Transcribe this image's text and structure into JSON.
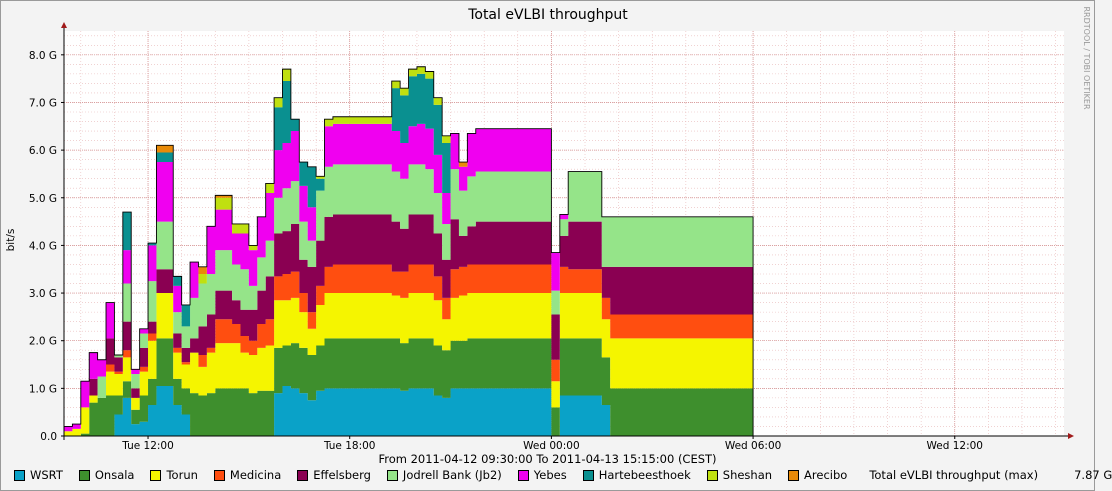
{
  "chart_data": {
    "type": "area",
    "stacked": true,
    "title": "Total eVLBI throughput",
    "ylabel": "bit/s",
    "watermark": "RRDTOOL / TOBI OETIKER",
    "time_range_label": "From 2011-04-12 09:30:00 To 2011-04-13 15:15:00 (CEST)",
    "x_start": "2011-04-12 09:30",
    "x_end": "2011-04-13 15:15",
    "x_step_minutes": 15,
    "x_tick_labels": [
      "Tue 12:00",
      "Tue 18:00",
      "Wed 00:00",
      "Wed 06:00",
      "Wed 12:00"
    ],
    "y_tick_labels": [
      "0.0",
      "1.0 G",
      "2.0 G",
      "3.0 G",
      "4.0 G",
      "5.0 G",
      "6.0 G",
      "7.0 G",
      "8.0 G"
    ],
    "ylim": [
      0,
      8.5
    ],
    "y_unit": "Gbit/s",
    "grid": true,
    "total_label": "Total eVLBI throughput (max)",
    "total_max": "7.87 G",
    "series": [
      {
        "name": "WSRT",
        "color": "#0aa2c8",
        "values": [
          0,
          0,
          0,
          0,
          0,
          0,
          0.45,
          0.8,
          0.25,
          0.3,
          0.65,
          1.05,
          1.05,
          0.65,
          0.45,
          0,
          0,
          0,
          0,
          0,
          0,
          0,
          0,
          0,
          0,
          0.9,
          1.05,
          1.0,
          0.9,
          0.75,
          0.95,
          1.0,
          1.0,
          1.0,
          1.0,
          1.0,
          1.0,
          1.0,
          1.0,
          1.0,
          0.95,
          1.0,
          1.0,
          1.0,
          0.85,
          0.8,
          1.0,
          1.0,
          1.0,
          1.0,
          1.0,
          1.0,
          1.0,
          1.0,
          1.0,
          1.0,
          1.0,
          1.0,
          0,
          0.85,
          0.85,
          0.85,
          0.85,
          0.85,
          0.65,
          0,
          0,
          0,
          0,
          0,
          0,
          0,
          0,
          0,
          0,
          0,
          0,
          0,
          0,
          0,
          0,
          0,
          0
        ]
      },
      {
        "name": "Onsala",
        "color": "#3e8f2d",
        "values": [
          0,
          0,
          0.05,
          0.7,
          0.8,
          0.85,
          0.4,
          0.35,
          0.3,
          0.55,
          0.55,
          1.0,
          1.0,
          0.55,
          0.55,
          0.9,
          0.85,
          0.9,
          1.0,
          1.0,
          1.0,
          1.0,
          0.9,
          0.95,
          0.95,
          0.95,
          0.85,
          0.95,
          0.95,
          0.95,
          0.95,
          1.05,
          1.05,
          1.05,
          1.05,
          1.05,
          1.05,
          1.05,
          1.05,
          1.05,
          1.0,
          1.05,
          1.05,
          1.05,
          1.05,
          1.0,
          1.0,
          1.0,
          1.05,
          1.05,
          1.05,
          1.05,
          1.05,
          1.05,
          1.05,
          1.05,
          1.05,
          1.05,
          0.6,
          1.2,
          1.2,
          1.2,
          1.2,
          1.2,
          1.0,
          1.0,
          1.0,
          1.0,
          1.0,
          1.0,
          1.0,
          1.0,
          1.0,
          1.0,
          1.0,
          1.0,
          1.0,
          1.0,
          1.0,
          1.0,
          1.0,
          1.0,
          0
        ]
      },
      {
        "name": "Torun",
        "color": "#f5f500",
        "values": [
          0.1,
          0.15,
          0.55,
          0.15,
          0,
          0.5,
          0.45,
          0.5,
          0.25,
          0.5,
          0.8,
          0.95,
          0.95,
          0.55,
          0.5,
          0.85,
          0.6,
          0.85,
          0.95,
          0.95,
          0.95,
          0.75,
          0.8,
          0.9,
          0.95,
          1.0,
          0.95,
          0.95,
          0.75,
          0.55,
          0.85,
          0.95,
          0.95,
          0.95,
          0.95,
          0.95,
          0.95,
          0.95,
          0.95,
          0.9,
          0.95,
          0.95,
          0.95,
          0.95,
          0.95,
          0.65,
          0.9,
          0.95,
          0.95,
          0.95,
          0.95,
          0.95,
          0.95,
          0.95,
          0.95,
          0.95,
          0.95,
          0.95,
          0.55,
          0.95,
          0.95,
          0.95,
          0.95,
          0.95,
          0.8,
          1.05,
          1.05,
          1.05,
          1.05,
          1.05,
          1.05,
          1.05,
          1.05,
          1.05,
          1.05,
          1.05,
          1.05,
          1.05,
          1.05,
          1.05,
          1.05,
          1.05,
          0
        ]
      },
      {
        "name": "Medicina",
        "color": "#ff4e10",
        "values": [
          0,
          0,
          0,
          0,
          0,
          0.15,
          0.05,
          0.15,
          0,
          0.1,
          0.15,
          0,
          0,
          0.1,
          0.05,
          0,
          0.25,
          0.1,
          0.5,
          0.5,
          0.4,
          0.35,
          0.3,
          0.5,
          0.55,
          0.5,
          0.55,
          0.55,
          0.4,
          0.35,
          0.4,
          0.55,
          0.6,
          0.6,
          0.6,
          0.6,
          0.6,
          0.6,
          0.6,
          0.5,
          0.55,
          0.6,
          0.6,
          0.6,
          0.5,
          0.45,
          0.6,
          0.6,
          0.6,
          0.6,
          0.6,
          0.6,
          0.6,
          0.6,
          0.6,
          0.6,
          0.6,
          0.6,
          0.45,
          0.55,
          0.5,
          0.5,
          0.5,
          0.5,
          0.45,
          0.5,
          0.5,
          0.5,
          0.5,
          0.5,
          0.5,
          0.5,
          0.5,
          0.5,
          0.5,
          0.5,
          0.5,
          0.5,
          0.5,
          0.5,
          0.5,
          0.5,
          0
        ]
      },
      {
        "name": "Effelsberg",
        "color": "#8a0052",
        "values": [
          0,
          0,
          0,
          0.35,
          0,
          0.55,
          0.3,
          0.6,
          0.2,
          0.4,
          0.25,
          0.5,
          0.5,
          0.3,
          0.3,
          0.3,
          0.6,
          0.7,
          0.6,
          0.6,
          0.5,
          0.55,
          0.65,
          0.7,
          0.9,
          0.9,
          0.9,
          1.0,
          0.7,
          0.95,
          0.95,
          1.05,
          1.05,
          1.05,
          1.05,
          1.05,
          1.05,
          1.05,
          1.05,
          1.05,
          0.9,
          1.05,
          1.05,
          1.05,
          0.9,
          0.8,
          1.05,
          0.65,
          0.8,
          0.9,
          0.9,
          0.9,
          0.9,
          0.9,
          0.9,
          0.9,
          0.9,
          0.9,
          0.95,
          0.65,
          1.0,
          1.0,
          1.0,
          1.0,
          0.65,
          1.0,
          1.0,
          1.0,
          1.0,
          1.0,
          1.0,
          1.0,
          1.0,
          1.0,
          1.0,
          1.0,
          1.0,
          1.0,
          1.0,
          1.0,
          1.0,
          1.0,
          0
        ]
      },
      {
        "name": "Jodrell Bank (Jb2)",
        "color": "#95e489",
        "values": [
          0,
          0,
          0,
          0,
          0.45,
          0,
          0.05,
          0.8,
          0.3,
          0.3,
          0.85,
          1.0,
          1.0,
          0.45,
          0.45,
          0.85,
          0.9,
          0.85,
          0.85,
          0.85,
          0.75,
          0.85,
          0.5,
          0.7,
          0.75,
          0.75,
          0.9,
          0.9,
          0.8,
          0.55,
          1.05,
          1.05,
          1.05,
          1.05,
          1.05,
          1.05,
          1.05,
          1.05,
          1.05,
          1.05,
          1.05,
          1.05,
          1.05,
          0.95,
          0.85,
          0.75,
          1.05,
          0.95,
          1.05,
          1.05,
          1.05,
          1.05,
          1.05,
          1.05,
          1.05,
          1.05,
          1.05,
          1.05,
          0.5,
          0.35,
          1.05,
          1.05,
          1.05,
          1.05,
          1.05,
          1.05,
          1.05,
          1.05,
          1.05,
          1.05,
          1.05,
          1.05,
          1.05,
          1.05,
          1.05,
          1.05,
          1.05,
          1.05,
          1.05,
          1.05,
          1.05,
          1.05,
          0
        ]
      },
      {
        "name": "Yebes",
        "color": "#f000f0",
        "values": [
          0.1,
          0.1,
          0.55,
          0.55,
          0.35,
          0.75,
          0,
          0.7,
          0.1,
          0.1,
          0.75,
          1.25,
          1.25,
          0.55,
          0,
          0.75,
          0,
          1.0,
          0.85,
          0.85,
          0.65,
          0.75,
          0.75,
          0.85,
          1.0,
          1.0,
          0.95,
          1.05,
          0.75,
          0.7,
          0,
          0.85,
          0.85,
          0.85,
          0.85,
          0.85,
          0.85,
          0.85,
          0.85,
          0.85,
          0.75,
          0.8,
          0.85,
          0.85,
          0.8,
          0.65,
          0.75,
          0.5,
          0.9,
          0.9,
          0.9,
          0.9,
          0.9,
          0.9,
          0.9,
          0.9,
          0.9,
          0.9,
          0.8,
          0.1,
          0,
          0,
          0,
          0,
          0,
          0,
          0,
          0,
          0,
          0,
          0,
          0,
          0,
          0,
          0,
          0,
          0,
          0,
          0,
          0,
          0,
          0,
          0
        ]
      },
      {
        "name": "Hartebeesthoek",
        "color": "#0a9090",
        "values": [
          0,
          0,
          0,
          0,
          0,
          0,
          0,
          0.8,
          0,
          0,
          0.05,
          0.2,
          0.2,
          0.2,
          0.45,
          0,
          0,
          0,
          0,
          0,
          0,
          0,
          0,
          0,
          0,
          0.9,
          1.3,
          0.25,
          0.5,
          0.85,
          0.25,
          0,
          0,
          0,
          0,
          0,
          0,
          0,
          0,
          0.9,
          1.0,
          1.05,
          1.05,
          1.05,
          1.05,
          1.05,
          0,
          0,
          0,
          0,
          0,
          0,
          0,
          0,
          0,
          0,
          0,
          0,
          0,
          0,
          0,
          0,
          0,
          0,
          0,
          0,
          0,
          0,
          0,
          0,
          0,
          0,
          0,
          0,
          0,
          0,
          0,
          0,
          0,
          0,
          0,
          0,
          0
        ]
      },
      {
        "name": "Sheshan",
        "color": "#c0e010",
        "values": [
          0,
          0,
          0,
          0,
          0,
          0,
          0,
          0,
          0,
          0,
          0,
          0,
          0,
          0,
          0,
          0,
          0.2,
          0,
          0.25,
          0.25,
          0.2,
          0.2,
          0.1,
          0,
          0.2,
          0.2,
          0.25,
          0,
          0,
          0,
          0.05,
          0.15,
          0.15,
          0.15,
          0.15,
          0.15,
          0.15,
          0.15,
          0.15,
          0.15,
          0.15,
          0.15,
          0.15,
          0.15,
          0.15,
          0.15,
          0,
          0,
          0,
          0,
          0,
          0,
          0,
          0,
          0,
          0,
          0,
          0,
          0,
          0,
          0,
          0,
          0,
          0,
          0,
          0,
          0,
          0,
          0,
          0,
          0,
          0,
          0,
          0,
          0,
          0,
          0,
          0,
          0,
          0,
          0,
          0,
          0
        ]
      },
      {
        "name": "Arecibo",
        "color": "#e88a08",
        "values": [
          0,
          0,
          0,
          0,
          0,
          0,
          0,
          0,
          0,
          0,
          0,
          0.15,
          0.15,
          0,
          0,
          0,
          0.15,
          0,
          0.05,
          0.05,
          0,
          0,
          0,
          0,
          0,
          0,
          0,
          0,
          0,
          0,
          0,
          0,
          0,
          0,
          0,
          0,
          0,
          0,
          0,
          0,
          0,
          0,
          0,
          0,
          0,
          0,
          0,
          0.1,
          0,
          0,
          0,
          0,
          0,
          0,
          0,
          0,
          0,
          0,
          0,
          0,
          0,
          0,
          0,
          0,
          0,
          0,
          0,
          0,
          0,
          0,
          0,
          0,
          0,
          0,
          0,
          0,
          0,
          0,
          0,
          0,
          0,
          0,
          0
        ]
      }
    ]
  }
}
